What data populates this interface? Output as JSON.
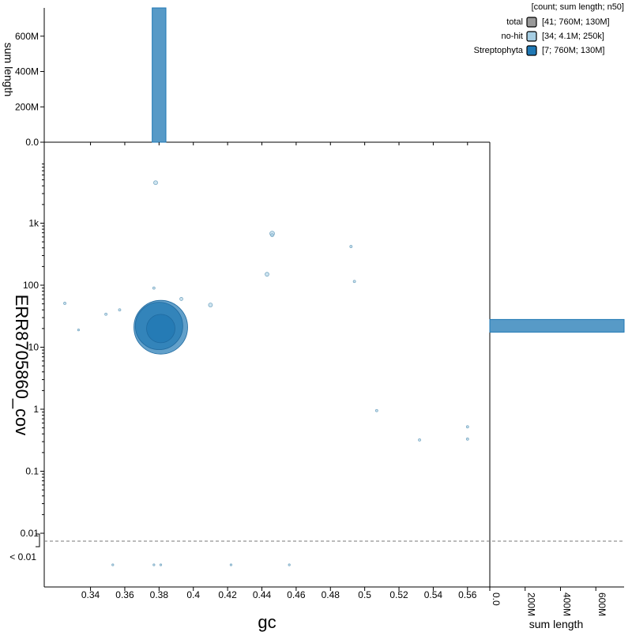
{
  "chart_data": {
    "type": "scatter",
    "title": "",
    "xlabel": "gc",
    "ylabel": "ERR8705860_cov",
    "xlim": [
      0.313,
      0.573
    ],
    "x_ticks": [
      "0.34",
      "0.36",
      "0.38",
      "0.4",
      "0.42",
      "0.44",
      "0.46",
      "0.48",
      "0.5",
      "0.52",
      "0.54",
      "0.56"
    ],
    "y_ticks": [
      "1k",
      "100",
      "10",
      "1",
      "0.1",
      "0.01"
    ],
    "y_scale": "log",
    "low_bin_label": "< 0.01",
    "top_panel": {
      "ylabel": "sum length",
      "y_ticks": [
        "0.0",
        "200M",
        "400M",
        "600M"
      ]
    },
    "right_panel": {
      "xlabel": "sum length",
      "x_ticks": [
        "0.0",
        "200M",
        "400M",
        "600M"
      ]
    },
    "legend": {
      "title": "[count; sum length; n50]",
      "placement": "top-right",
      "items": [
        {
          "name": "total",
          "stats": "[41; 760M; 130M]",
          "color": "#999999"
        },
        {
          "name": "no-hit",
          "stats": "[34; 4.1M; 250k]",
          "color": "#a6cee3"
        },
        {
          "name": "Streptophyta",
          "stats": "[7; 760M; 130M]",
          "color": "#1f78b4"
        }
      ]
    },
    "series": [
      {
        "name": "no-hit",
        "color": "#a6cee3",
        "points": [
          {
            "x": 0.378,
            "y": 4500,
            "r": 2.5
          },
          {
            "x": 0.446,
            "y": 680,
            "r": 3
          },
          {
            "x": 0.446,
            "y": 640,
            "r": 2
          },
          {
            "x": 0.492,
            "y": 420,
            "r": 1.5
          },
          {
            "x": 0.443,
            "y": 150,
            "r": 2.5
          },
          {
            "x": 0.494,
            "y": 115,
            "r": 1.5
          },
          {
            "x": 0.377,
            "y": 90,
            "r": 1.5
          },
          {
            "x": 0.393,
            "y": 60,
            "r": 2
          },
          {
            "x": 0.325,
            "y": 51,
            "r": 1.5
          },
          {
            "x": 0.41,
            "y": 48,
            "r": 2.5
          },
          {
            "x": 0.357,
            "y": 40,
            "r": 1.5
          },
          {
            "x": 0.349,
            "y": 34,
            "r": 1.5
          },
          {
            "x": 0.333,
            "y": 19,
            "r": 1.2
          },
          {
            "x": 0.507,
            "y": 0.95,
            "r": 1.5
          },
          {
            "x": 0.56,
            "y": 0.52,
            "r": 1.5
          },
          {
            "x": 0.532,
            "y": 0.32,
            "r": 1.5
          },
          {
            "x": 0.56,
            "y": 0.33,
            "r": 1.5
          },
          {
            "x": 0.353,
            "y": "<0.01",
            "r": 1.2
          },
          {
            "x": 0.377,
            "y": "<0.01",
            "r": 1.2
          },
          {
            "x": 0.381,
            "y": "<0.01",
            "r": 1.2
          },
          {
            "x": 0.422,
            "y": "<0.01",
            "r": 1.2
          },
          {
            "x": 0.456,
            "y": "<0.01",
            "r": 1.2
          }
        ]
      },
      {
        "name": "Streptophyta",
        "color": "#1f78b4",
        "points": [
          {
            "x": 0.381,
            "y": 21,
            "r": 34
          },
          {
            "x": 0.38,
            "y": 22,
            "r": 30
          },
          {
            "x": 0.381,
            "y": 20,
            "r": 18
          }
        ]
      }
    ],
    "top_histogram": [
      {
        "x0": 0.376,
        "x1": 0.384,
        "value": 760,
        "color": "#1f78b4"
      }
    ],
    "right_histogram": [
      {
        "y0": 17.5,
        "y1": 28,
        "value": 760,
        "color": "#1f78b4"
      }
    ],
    "histogram_max": 760
  }
}
